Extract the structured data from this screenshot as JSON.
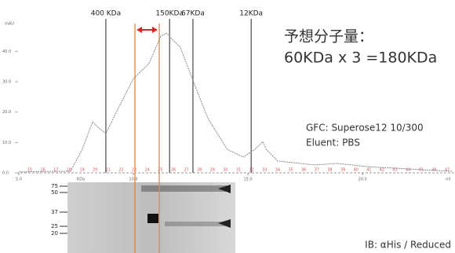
{
  "chart_data": {
    "type": "line",
    "y_label": "mAU",
    "x_label": "ml",
    "kda_label": "KDa",
    "x": [
      5.0,
      6.6,
      7.26,
      7.77,
      8.22,
      8.46,
      8.8,
      9.3,
      10.0,
      10.68,
      11.2,
      11.44,
      11.7,
      12.05,
      12.57,
      13.25,
      14.1,
      14.8,
      15.3,
      15.65,
      15.8,
      16.3,
      17.9,
      18.9,
      20.3,
      22.0,
      23.9
    ],
    "values": [
      0.3,
      0.5,
      0.5,
      7.7,
      16.8,
      15,
      12.9,
      20.6,
      31,
      36,
      45,
      46,
      43.9,
      41.3,
      31,
      18,
      7.7,
      5.2,
      7.7,
      10.3,
      7.7,
      3.9,
      2.6,
      3.1,
      2,
      1.3,
      0.5
    ],
    "color": "#888888",
    "xlim": [
      4.9,
      24
    ],
    "ylim": [
      0,
      53
    ],
    "xticks": [
      {
        "value": 5,
        "label": "5.0"
      },
      {
        "value": 10,
        "label": "10.0"
      },
      {
        "value": 15,
        "label": "15.0"
      },
      {
        "value": 20,
        "label": "20.0"
      }
    ],
    "yticks": [
      {
        "value": 0,
        "label": "0.0"
      },
      {
        "value": 10,
        "label": "10.0"
      },
      {
        "value": 20,
        "label": "20.0"
      },
      {
        "value": 30,
        "label": "30.0"
      },
      {
        "value": 40,
        "label": "40.0"
      }
    ],
    "fraction_labels": [
      "15",
      "16",
      "17",
      "18",
      "19",
      "20",
      "21",
      "22",
      "23",
      "24",
      "25",
      "26",
      "27",
      "28",
      "29",
      "30",
      "31",
      "32",
      "33",
      "34",
      "35",
      "36",
      "37",
      "38",
      "39",
      "40",
      "41",
      "42",
      "43",
      "44",
      "45",
      "46",
      "47"
    ],
    "markers": [
      {
        "label": "400 KDa",
        "x": 8.8
      },
      {
        "label": "150KDa",
        "x": 11.58
      },
      {
        "label": "67KDa",
        "x": 12.6
      },
      {
        "label": "12KDa",
        "x": 15.14
      }
    ],
    "highlight": [
      10.07,
      11.13
    ],
    "annotations": {
      "expected_title": "予想分子量：",
      "expected_value": "60KDa x 3 =180KDa",
      "column": "GFC: Superose12 10/300",
      "eluent": "Eluent: PBS"
    },
    "blot": {
      "ladder": [
        "75",
        "50",
        "37",
        "25",
        "20"
      ],
      "caption": "IB: αHis / Reduced"
    }
  }
}
